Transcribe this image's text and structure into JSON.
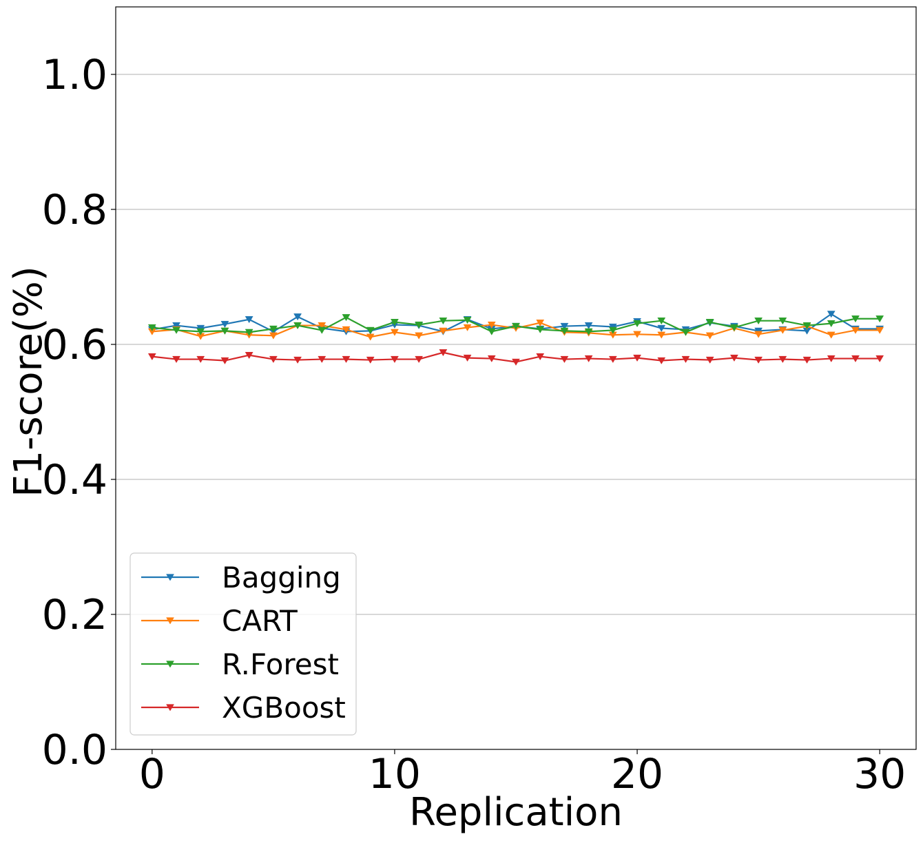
{
  "chart_data": {
    "type": "line",
    "title": "",
    "xlabel": "Replication",
    "ylabel": "F1-score(%)",
    "xlim": [
      -1.5,
      31.5
    ],
    "ylim": [
      0.0,
      1.1
    ],
    "xticks": [
      0,
      10,
      20,
      30
    ],
    "xtick_labels": [
      "0",
      "10",
      "20",
      "30"
    ],
    "yticks": [
      0.0,
      0.2,
      0.4,
      0.6,
      0.8,
      1.0
    ],
    "ytick_labels": [
      "0.0",
      "0.2",
      "0.4",
      "0.6",
      "0.8",
      "1.0"
    ],
    "grid": "horizontal",
    "legend_position": "lower-left",
    "marker": "triangle-down",
    "x": [
      0,
      1,
      2,
      3,
      4,
      5,
      6,
      7,
      8,
      9,
      10,
      11,
      12,
      13,
      14,
      15,
      16,
      17,
      18,
      19,
      20,
      21,
      22,
      23,
      24,
      25,
      26,
      27,
      28,
      29,
      30
    ],
    "series": [
      {
        "name": "Bagging",
        "color": "#1f77b4",
        "values": [
          0.622,
          0.628,
          0.624,
          0.63,
          0.637,
          0.619,
          0.641,
          0.624,
          0.619,
          0.62,
          0.629,
          0.628,
          0.619,
          0.637,
          0.623,
          0.627,
          0.623,
          0.627,
          0.628,
          0.626,
          0.634,
          0.624,
          0.622,
          0.632,
          0.627,
          0.62,
          0.622,
          0.62,
          0.645,
          0.623,
          0.623
        ]
      },
      {
        "name": "CART",
        "color": "#ff7f0e",
        "values": [
          0.619,
          0.622,
          0.612,
          0.62,
          0.614,
          0.613,
          0.628,
          0.628,
          0.622,
          0.611,
          0.618,
          0.613,
          0.62,
          0.625,
          0.629,
          0.624,
          0.632,
          0.618,
          0.617,
          0.614,
          0.615,
          0.614,
          0.618,
          0.613,
          0.624,
          0.615,
          0.621,
          0.627,
          0.614,
          0.621,
          0.621
        ]
      },
      {
        "name": "R.Forest",
        "color": "#2ca02c",
        "values": [
          0.625,
          0.621,
          0.619,
          0.62,
          0.618,
          0.623,
          0.628,
          0.621,
          0.64,
          0.621,
          0.633,
          0.629,
          0.635,
          0.636,
          0.619,
          0.627,
          0.622,
          0.62,
          0.619,
          0.621,
          0.631,
          0.635,
          0.618,
          0.633,
          0.625,
          0.635,
          0.635,
          0.628,
          0.631,
          0.638,
          0.638
        ]
      },
      {
        "name": "XGBoost",
        "color": "#d62728",
        "values": [
          0.582,
          0.578,
          0.578,
          0.576,
          0.584,
          0.578,
          0.577,
          0.578,
          0.578,
          0.577,
          0.578,
          0.578,
          0.588,
          0.58,
          0.579,
          0.574,
          0.582,
          0.578,
          0.579,
          0.578,
          0.58,
          0.576,
          0.578,
          0.577,
          0.58,
          0.577,
          0.578,
          0.577,
          0.579,
          0.579,
          0.579
        ]
      }
    ]
  }
}
